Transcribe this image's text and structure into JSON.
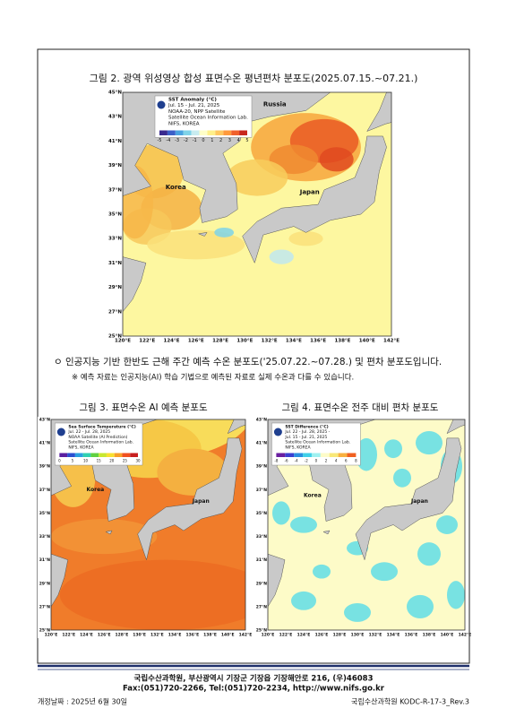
{
  "figure2": {
    "caption": "그림 2. 광역 위성영상 합성 표면수온 평년편차 분포도(2025.07.15.~07.21.)",
    "legend": [
      "SST Anomaly (°C)",
      "Jul. 15 - Jul. 21, 2025",
      "NOAA-20, NPP Satellite",
      "Satellite Ocean Information Lab.",
      "NIFS, KOREA"
    ],
    "colorbar": [
      "-5",
      "-4",
      "-3",
      "-2",
      "-1",
      "0",
      "1",
      "2",
      "3",
      "4",
      "5"
    ],
    "places": [
      "Russia",
      "Korea",
      "Japan"
    ],
    "lat": [
      "45°N",
      "43°N",
      "41°N",
      "39°N",
      "37°N",
      "35°N",
      "33°N",
      "31°N",
      "29°N",
      "27°N",
      "25°N"
    ],
    "lon": [
      "120°E",
      "122°E",
      "124°E",
      "126°E",
      "128°E",
      "130°E",
      "132°E",
      "134°E",
      "136°E",
      "138°E",
      "140°E",
      "142°E"
    ]
  },
  "body": {
    "bullet": "ㅇ 인공지능 기반 한반도 근해 주간 예측 수온 분포도('25.07.22.~07.28.) 및 편차 분포도입니다.",
    "note": "※ 예측 자료는 인공지능(AI) 학습 기법으로 예측된 자료로 실제 수온과 다를 수 있습니다."
  },
  "figure3": {
    "caption": "그림 3. 표면수온 AI 예측 분포도",
    "legend": [
      "Sea Surface Temperature (°C)",
      "Jul. 22 - Jul. 28, 2025",
      "NOAA Satellite (AI Prediction)",
      "Satellite Ocean Information Lab.",
      "NIFS, KOREA"
    ],
    "colorbar": [
      "0",
      "5",
      "10",
      "15",
      "20",
      "25",
      "30"
    ],
    "places": [
      "Korea",
      "Japan"
    ],
    "lat": [
      "43°N",
      "41°N",
      "39°N",
      "37°N",
      "35°N",
      "33°N",
      "31°N",
      "29°N",
      "27°N",
      "25°N"
    ],
    "lon": [
      "120°E",
      "122°E",
      "124°E",
      "126°E",
      "128°E",
      "130°E",
      "132°E",
      "134°E",
      "136°E",
      "138°E",
      "140°E",
      "142°E"
    ]
  },
  "figure4": {
    "caption": "그림 4. 표면수온 전주 대비 편차 분포도",
    "legend": [
      "SST Difference (°C)",
      "Jul. 22 - Jul. 28, 2025 -",
      "Jul. 15 - Jul. 21, 2025",
      "Satellite Ocean Information Lab.",
      "NIFS, KOREA"
    ],
    "colorbar": [
      "-8",
      "-6",
      "-4",
      "-2",
      "0",
      "2",
      "4",
      "6",
      "8"
    ],
    "places": [
      "Korea",
      "Japan"
    ],
    "lat": [
      "43°N",
      "41°N",
      "39°N",
      "37°N",
      "35°N",
      "33°N",
      "31°N",
      "29°N",
      "27°N",
      "25°N"
    ],
    "lon": [
      "120°E",
      "122°E",
      "124°E",
      "126°E",
      "128°E",
      "130°E",
      "132°E",
      "134°E",
      "136°E",
      "138°E",
      "140°E",
      "142°E"
    ]
  },
  "footer": {
    "address": "국립수산과학원, 부산광역시 기장군 기장읍 기장해안로 216, (우)46083",
    "contact": "Fax:(051)720-2266, Tel:(051)720-2234, http://www.nifs.go.kr",
    "revision_date": "개정날짜 : 2025년 6월 30일",
    "doc_id": "국립수산과학원 KODC-R-17-3_Rev.3"
  }
}
